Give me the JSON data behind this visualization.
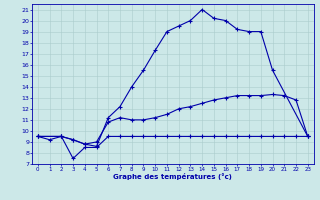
{
  "xlabel": "Graphe des températures (°c)",
  "bg_color": "#cce8e8",
  "line_color": "#0000aa",
  "grid_color": "#aacccc",
  "xlim": [
    -0.5,
    23.5
  ],
  "ylim": [
    7,
    21.5
  ],
  "xticks": [
    0,
    1,
    2,
    3,
    4,
    5,
    6,
    7,
    8,
    9,
    10,
    11,
    12,
    13,
    14,
    15,
    16,
    17,
    18,
    19,
    20,
    21,
    22,
    23
  ],
  "yticks": [
    7,
    8,
    9,
    10,
    11,
    12,
    13,
    14,
    15,
    16,
    17,
    18,
    19,
    20,
    21
  ],
  "line1_x": [
    0,
    1,
    2,
    3,
    4,
    5,
    6,
    7,
    8,
    9,
    10,
    11,
    12,
    13,
    14,
    15,
    16,
    17,
    18,
    19,
    20,
    23
  ],
  "line1_y": [
    9.5,
    9.2,
    9.5,
    9.2,
    8.8,
    8.6,
    11.2,
    12.2,
    14.0,
    15.5,
    17.3,
    19.0,
    19.5,
    20.0,
    21.0,
    20.2,
    20.0,
    19.2,
    19.0,
    19.0,
    15.5,
    9.5
  ],
  "line2_x": [
    0,
    2,
    3,
    4,
    5,
    6,
    7,
    8,
    9,
    10,
    11,
    12,
    13,
    14,
    15,
    16,
    17,
    18,
    19,
    20,
    21,
    22,
    23
  ],
  "line2_y": [
    9.5,
    9.5,
    9.2,
    8.8,
    9.0,
    10.8,
    11.2,
    11.0,
    11.0,
    11.2,
    11.5,
    12.0,
    12.2,
    12.5,
    12.8,
    13.0,
    13.2,
    13.2,
    13.2,
    13.3,
    13.2,
    12.8,
    9.5
  ],
  "line3_x": [
    0,
    2,
    3,
    4,
    5,
    6,
    7,
    8,
    9,
    10,
    11,
    12,
    13,
    14,
    15,
    16,
    17,
    18,
    19,
    20,
    21,
    22,
    23
  ],
  "line3_y": [
    9.5,
    9.5,
    7.5,
    8.5,
    8.5,
    9.5,
    9.5,
    9.5,
    9.5,
    9.5,
    9.5,
    9.5,
    9.5,
    9.5,
    9.5,
    9.5,
    9.5,
    9.5,
    9.5,
    9.5,
    9.5,
    9.5,
    9.5
  ]
}
